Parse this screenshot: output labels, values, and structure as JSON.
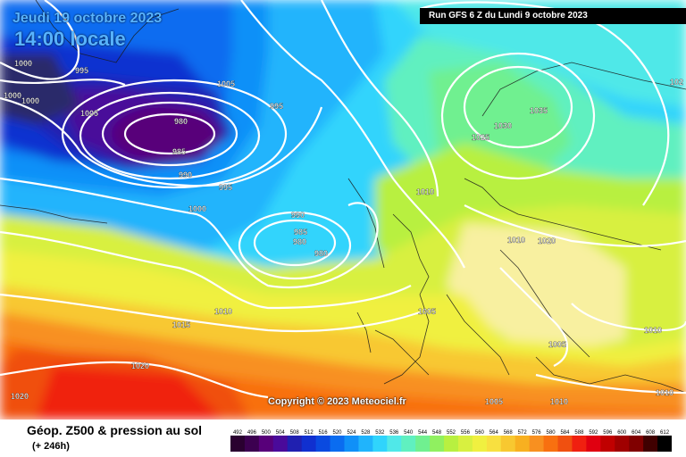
{
  "header": {
    "date_line": "Jeudi 19 octobre 2023",
    "time_line": "14:00 locale",
    "run_info": "Run GFS 6 Z du Lundi 9 octobre 2023"
  },
  "copyright": "Copyright © 2023 Meteociel.fr",
  "footer": {
    "title": "Géop. Z500 & pression au sol",
    "subtitle": "(+ 246h)"
  },
  "scale": {
    "values": [
      "492",
      "496",
      "500",
      "504",
      "508",
      "512",
      "516",
      "520",
      "524",
      "528",
      "532",
      "536",
      "540",
      "544",
      "548",
      "552",
      "556",
      "560",
      "564",
      "568",
      "572",
      "576",
      "580",
      "584",
      "588",
      "592",
      "596",
      "600",
      "604",
      "608",
      "612"
    ],
    "colors": [
      "#2a0030",
      "#3c0050",
      "#58007a",
      "#4a0a9a",
      "#2020b0",
      "#1030d0",
      "#0a4ae0",
      "#0a6cf0",
      "#1090f8",
      "#20b4fc",
      "#30d4fc",
      "#50e8e8",
      "#60f0c0",
      "#70f090",
      "#90f060",
      "#b8f040",
      "#d8f040",
      "#f0f040",
      "#f8e040",
      "#f8c830",
      "#f8b020",
      "#f89020",
      "#f87010",
      "#f05010",
      "#f02010",
      "#e00010",
      "#c00000",
      "#a00000",
      "#800000",
      "#400000",
      "#000000"
    ]
  },
  "pressure_labels": [
    {
      "text": "995"
    },
    {
      "text": "1000"
    },
    {
      "text": "1000"
    },
    {
      "text": "1000"
    },
    {
      "text": "1005"
    },
    {
      "text": "980"
    },
    {
      "text": "985"
    },
    {
      "text": "990"
    },
    {
      "text": "995"
    },
    {
      "text": "1005"
    },
    {
      "text": "995"
    },
    {
      "text": "1000"
    },
    {
      "text": "990"
    },
    {
      "text": "985"
    },
    {
      "text": "980"
    },
    {
      "text": "980"
    },
    {
      "text": "1010"
    },
    {
      "text": "1015"
    },
    {
      "text": "1020"
    },
    {
      "text": "1020"
    },
    {
      "text": "1010"
    },
    {
      "text": "1005"
    },
    {
      "text": "1025"
    },
    {
      "text": "1030"
    },
    {
      "text": "1035"
    },
    {
      "text": "1010"
    },
    {
      "text": "1015"
    },
    {
      "text": "1020"
    },
    {
      "text": "1005"
    },
    {
      "text": "1005"
    },
    {
      "text": "1010"
    },
    {
      "text": "1010"
    },
    {
      "text": "1010"
    },
    {
      "text": "102"
    }
  ]
}
